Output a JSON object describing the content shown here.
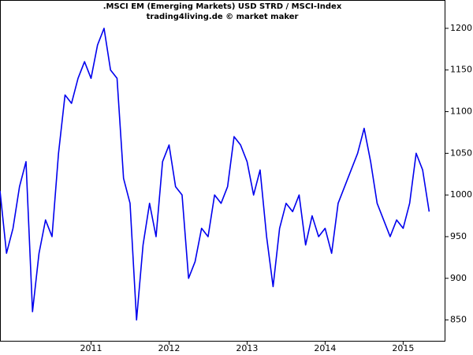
{
  "chart_data": {
    "type": "line",
    "title": ".MSCI EM (Emerging Markets) USD STRD / MSCI-Index",
    "subtitle": "trading4living.de © market maker",
    "categories": [
      null,
      null,
      null,
      null,
      null,
      null,
      null,
      null,
      null,
      null,
      null,
      null,
      null,
      null,
      "2011",
      null,
      null,
      null,
      null,
      null,
      null,
      null,
      null,
      null,
      null,
      null,
      "2012",
      null,
      null,
      null,
      null,
      null,
      null,
      null,
      null,
      null,
      null,
      null,
      "2013",
      null,
      null,
      null,
      null,
      null,
      null,
      null,
      null,
      null,
      null,
      null,
      "2014",
      null,
      null,
      null,
      null,
      null,
      null,
      null,
      null,
      null,
      null,
      null,
      "2015",
      null,
      null,
      null,
      null
    ],
    "series": [
      {
        "name": ".MSCI EM",
        "color": "#0000ee",
        "values": [
          1005,
          930,
          960,
          1010,
          1040,
          860,
          930,
          970,
          950,
          1050,
          1120,
          1110,
          1140,
          1160,
          1140,
          1180,
          1200,
          1150,
          1140,
          1020,
          990,
          850,
          940,
          990,
          950,
          1040,
          1060,
          1010,
          1000,
          900,
          920,
          960,
          950,
          1000,
          990,
          1010,
          1070,
          1060,
          1040,
          1000,
          1030,
          950,
          890,
          960,
          990,
          980,
          1000,
          940,
          975,
          950,
          960,
          930,
          990,
          1010,
          1030,
          1050,
          1080,
          1040,
          990,
          970,
          950,
          970,
          960,
          990,
          1050,
          1030,
          980
        ]
      }
    ],
    "ylim": [
      825,
      1234
    ],
    "yticks": [
      850,
      900,
      950,
      1000,
      1050,
      1100,
      1150,
      1200
    ]
  }
}
